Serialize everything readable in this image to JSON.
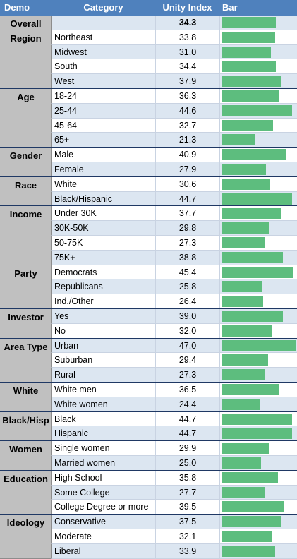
{
  "headers": {
    "demo": "Demo",
    "category": "Category",
    "index": "Unity Index",
    "bar": "Bar"
  },
  "colors": {
    "header": "#4f81bd",
    "bar": "#5dbd7e",
    "demo_fill": "#c0c0c0",
    "band": "#dce6f1"
  },
  "chart_data": {
    "type": "bar",
    "title": "",
    "xlabel": "",
    "ylabel": "Unity Index",
    "xlim": [
      0,
      47
    ],
    "groups": [
      {
        "demo": "Overall",
        "rows": [
          {
            "category": "",
            "value": 34.3
          }
        ]
      },
      {
        "demo": "Region",
        "rows": [
          {
            "category": "Northeast",
            "value": 33.8
          },
          {
            "category": "Midwest",
            "value": 31.0
          },
          {
            "category": "South",
            "value": 34.4
          },
          {
            "category": "West",
            "value": 37.9
          }
        ]
      },
      {
        "demo": "Age",
        "rows": [
          {
            "category": "18-24",
            "value": 36.3
          },
          {
            "category": "25-44",
            "value": 44.6
          },
          {
            "category": "45-64",
            "value": 32.7
          },
          {
            "category": "65+",
            "value": 21.3
          }
        ]
      },
      {
        "demo": "Gender",
        "rows": [
          {
            "category": "Male",
            "value": 40.9
          },
          {
            "category": "Female",
            "value": 27.9
          }
        ]
      },
      {
        "demo": "Race",
        "rows": [
          {
            "category": "White",
            "value": 30.6
          },
          {
            "category": "Black/Hispanic",
            "value": 44.7
          }
        ]
      },
      {
        "demo": "Income",
        "rows": [
          {
            "category": "Under 30K",
            "value": 37.7
          },
          {
            "category": "30K-50K",
            "value": 29.8
          },
          {
            "category": "50-75K",
            "value": 27.3
          },
          {
            "category": "75K+",
            "value": 38.8
          }
        ]
      },
      {
        "demo": "Party",
        "rows": [
          {
            "category": "Democrats",
            "value": 45.4
          },
          {
            "category": "Republicans",
            "value": 25.8
          },
          {
            "category": "Ind./Other",
            "value": 26.4
          }
        ]
      },
      {
        "demo": "Investor",
        "rows": [
          {
            "category": "Yes",
            "value": 39.0
          },
          {
            "category": "No",
            "value": 32.0
          }
        ]
      },
      {
        "demo": "Area Type",
        "rows": [
          {
            "category": "Urban",
            "value": 47.0
          },
          {
            "category": "Suburban",
            "value": 29.4
          },
          {
            "category": "Rural",
            "value": 27.3
          }
        ]
      },
      {
        "demo": "White",
        "rows": [
          {
            "category": "White men",
            "value": 36.5
          },
          {
            "category": "White women",
            "value": 24.4
          }
        ]
      },
      {
        "demo": "Black/Hisp",
        "rows": [
          {
            "category": "Black",
            "value": 44.7
          },
          {
            "category": "Hispanic",
            "value": 44.7
          }
        ]
      },
      {
        "demo": "Women",
        "rows": [
          {
            "category": "Single women",
            "value": 29.9
          },
          {
            "category": "Married women",
            "value": 25.0
          }
        ]
      },
      {
        "demo": "Education",
        "rows": [
          {
            "category": "High School",
            "value": 35.8
          },
          {
            "category": "Some College",
            "value": 27.7
          },
          {
            "category": "College Degree or more",
            "value": 39.5
          }
        ]
      },
      {
        "demo": "Ideology",
        "rows": [
          {
            "category": "Conservative",
            "value": 37.5
          },
          {
            "category": "Moderate",
            "value": 32.1
          },
          {
            "category": "Liberal",
            "value": 33.9
          }
        ]
      }
    ]
  }
}
